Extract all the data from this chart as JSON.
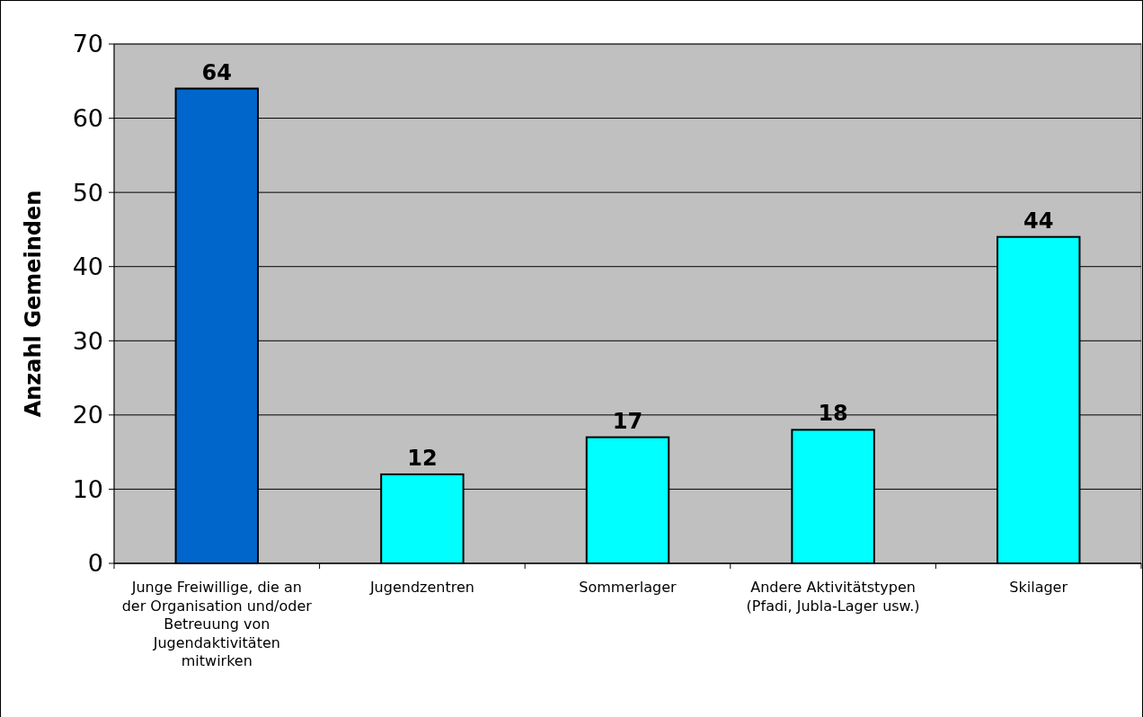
{
  "chart_data": {
    "type": "bar",
    "ylabel": "Anzahl Gemeinden",
    "categories": [
      "Junge Freiwillige, die an der Organisation und/oder Betreuung von Jugendaktivitäten mitwirken",
      "Jugendzentren",
      "Sommerlager",
      "Andere Aktivitätstypen (Pfadi, Jubla-Lager usw.)",
      "Skilager"
    ],
    "values": [
      64,
      12,
      17,
      18,
      44
    ],
    "colors": [
      "#0066cc",
      "#00ffff",
      "#00ffff",
      "#00ffff",
      "#00ffff"
    ],
    "ylim": [
      0,
      70
    ],
    "yticks": [
      0,
      10,
      20,
      30,
      40,
      50,
      60,
      70
    ],
    "grid": "y",
    "data_labels": true
  }
}
